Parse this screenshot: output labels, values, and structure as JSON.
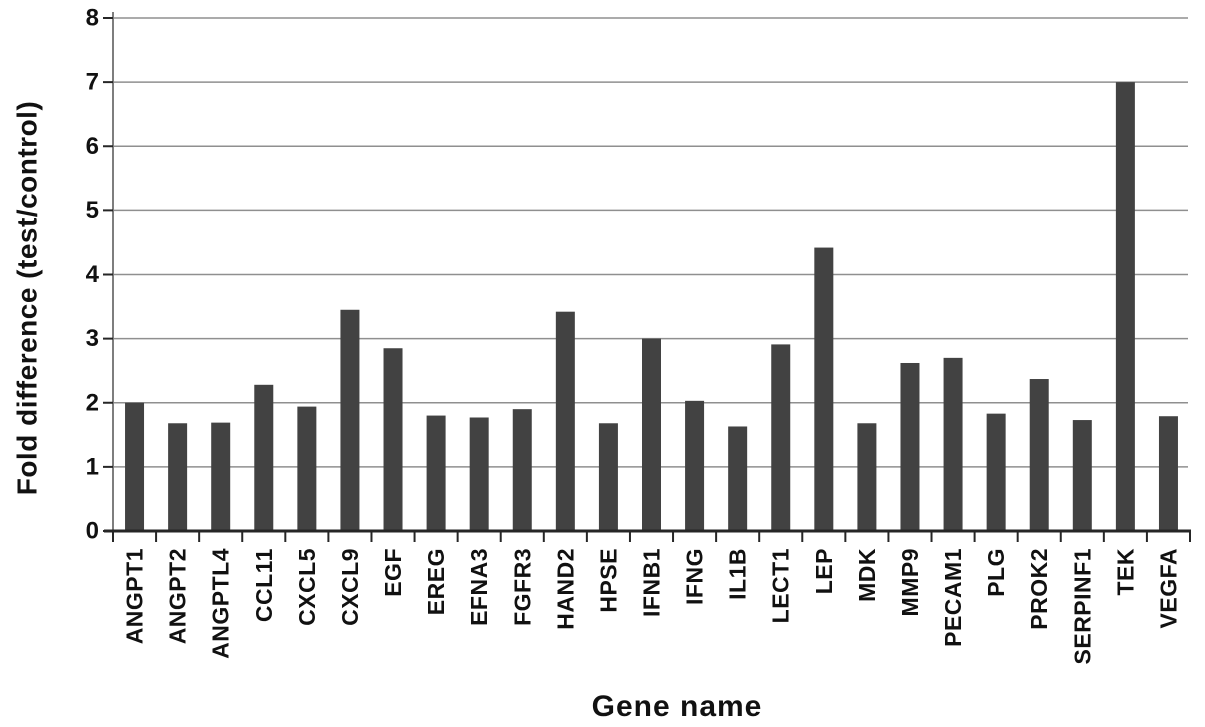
{
  "chart_data": {
    "type": "bar",
    "title": "",
    "xlabel": "Gene name",
    "ylabel": "Fold difference (test/control)",
    "ylim": [
      0,
      8
    ],
    "yticks": [
      0,
      1,
      2,
      3,
      4,
      5,
      6,
      7,
      8
    ],
    "grid": "horizontal-on",
    "legend": "none",
    "background": "#ffffff",
    "bar_color": "#424242",
    "gridline_color": "#8f8f8f",
    "axis_color": "#262626",
    "categories": [
      "ANGPT1",
      "ANGPT2",
      "ANGPTL4",
      "CCL11",
      "CXCL5",
      "CXCL9",
      "EGF",
      "EREG",
      "EFNA3",
      "FGFR3",
      "HAND2",
      "HPSE",
      "IFNB1",
      "IFNG",
      "IL1B",
      "LECT1",
      "LEP",
      "MDK",
      "MMP9",
      "PECAM1",
      "PLG",
      "PROK2",
      "SERPINF1",
      "TEK",
      "VEGFA"
    ],
    "values": [
      2.0,
      1.68,
      1.69,
      2.28,
      1.94,
      3.45,
      2.85,
      1.8,
      1.77,
      1.9,
      3.42,
      1.68,
      3.0,
      2.03,
      1.63,
      2.91,
      4.42,
      1.68,
      2.62,
      2.7,
      1.83,
      2.37,
      1.73,
      7.0,
      1.79
    ]
  }
}
